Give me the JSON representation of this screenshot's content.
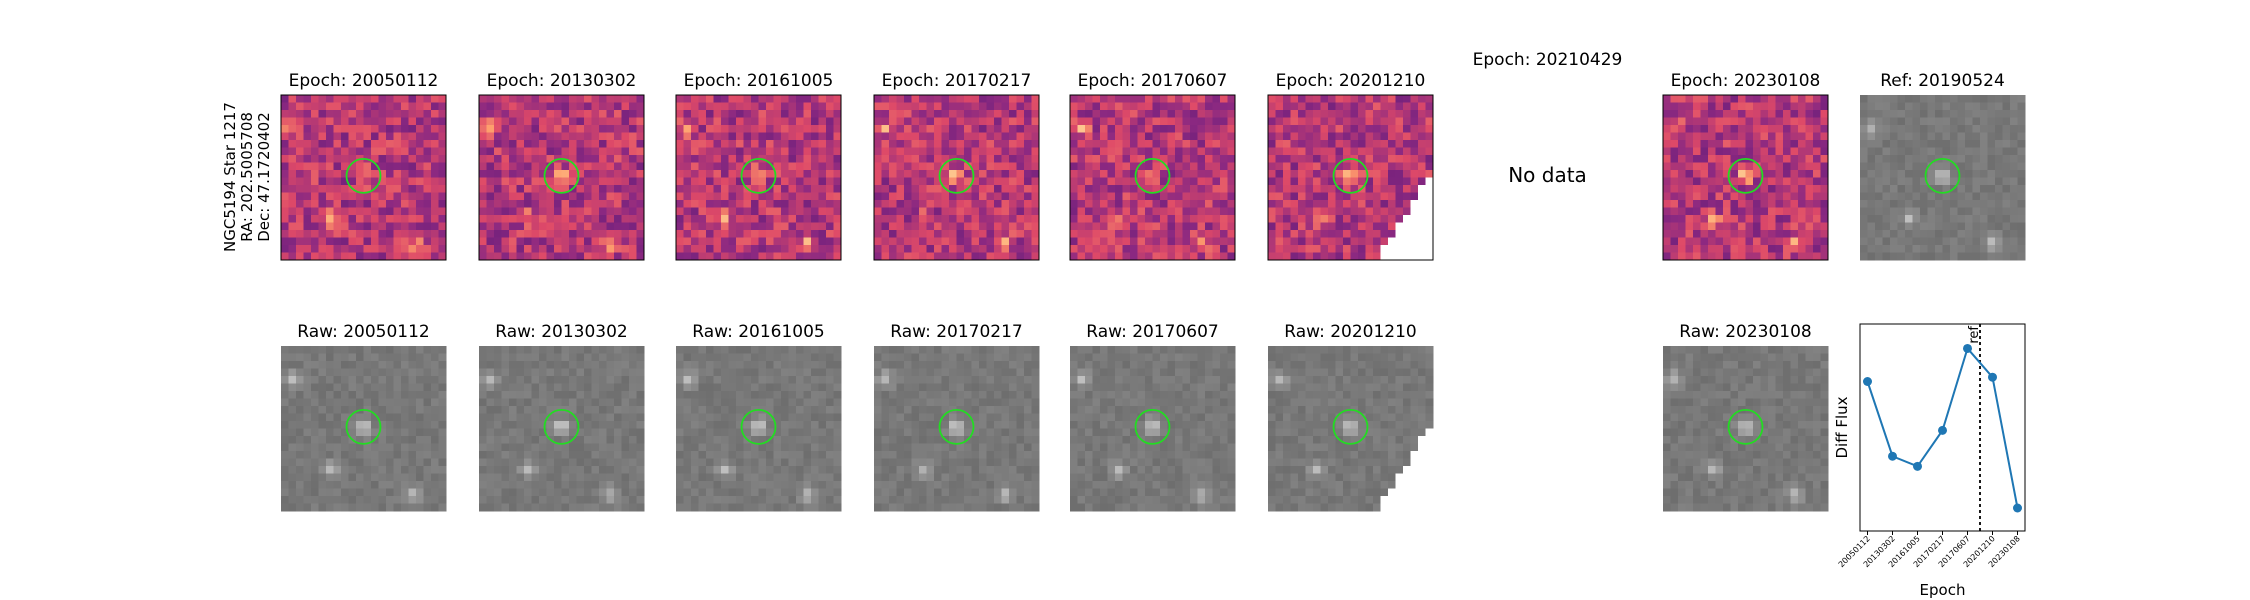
{
  "row_label": [
    "NGC5194 Star 1217",
    "RA: 202.5005708",
    "Dec: 47.1720402"
  ],
  "top_panels": [
    {
      "title": "Epoch: 20050112"
    },
    {
      "title": "Epoch: 20130302"
    },
    {
      "title": "Epoch: 20161005"
    },
    {
      "title": "Epoch: 20170217"
    },
    {
      "title": "Epoch: 20170607"
    },
    {
      "title": "Epoch: 20201210"
    },
    {
      "title": "Epoch: 20210429",
      "note": "No data"
    },
    {
      "title": "Epoch: 20230108"
    },
    {
      "title": "Ref: 20190524"
    }
  ],
  "bottom_panels": [
    {
      "title": "Raw: 20050112"
    },
    {
      "title": "Raw: 20130302"
    },
    {
      "title": "Raw: 20161005"
    },
    {
      "title": "Raw: 20170217"
    },
    {
      "title": "Raw: 20170607"
    },
    {
      "title": "Raw: 20201210"
    },
    {
      "title": "Raw: 20230108"
    }
  ],
  "chart_data": {
    "type": "line",
    "xlabel": "Epoch",
    "ylabel": "Diff Flux",
    "categories": [
      "20050112",
      "20130302",
      "20161005",
      "20170217",
      "20170607",
      "20201210",
      "20230108"
    ],
    "values": [
      104,
      52,
      45,
      70,
      127,
      107,
      16
    ],
    "color": "#1f77b4",
    "ylim": [
      0,
      144
    ],
    "ref_line": {
      "label": "ref",
      "x": 4.5
    }
  }
}
